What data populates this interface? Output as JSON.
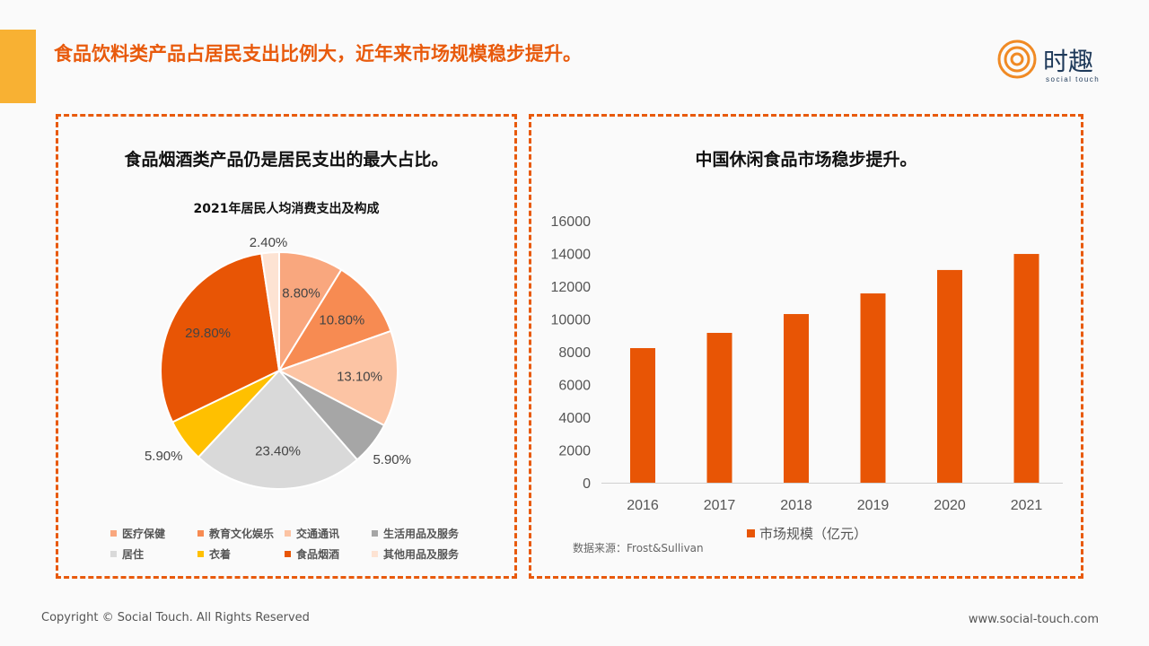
{
  "header": {
    "title": "食品饮料类产品占居民支出比例大，近年来市场规模稳步提升。",
    "logo_text": "时趣",
    "logo_sub": "social touch"
  },
  "left_panel": {
    "title": "食品烟酒类产品仍是居民支出的最大占比。"
  },
  "right_panel": {
    "title": "中国休闲食品市场稳步提升。",
    "source": "数据来源：Frost&Sullivan"
  },
  "footer": {
    "copyright": "Copyright © Social Touch. All Rights Reserved",
    "website": "www.social-touch.com"
  },
  "chart_data": [
    {
      "type": "pie",
      "title": "2021年居民人均消费支出及构成",
      "slices": [
        {
          "label": "医疗保健",
          "value": 8.8,
          "display": "8.80%",
          "color": "#F9A77E"
        },
        {
          "label": "教育文化娱乐",
          "value": 10.8,
          "display": "10.80%",
          "color": "#F78B52"
        },
        {
          "label": "交通通讯",
          "value": 13.1,
          "display": "13.10%",
          "color": "#FCC4A4"
        },
        {
          "label": "生活用品及服务",
          "value": 5.9,
          "display": "5.90%",
          "color": "#A6A6A6"
        },
        {
          "label": "居住",
          "value": 23.4,
          "display": "23.40%",
          "color": "#D9D9D9"
        },
        {
          "label": "衣着",
          "value": 5.9,
          "display": "5.90%",
          "color": "#FFC000"
        },
        {
          "label": "食品烟酒",
          "value": 29.8,
          "display": "29.80%",
          "color": "#E85505"
        },
        {
          "label": "其他用品及服务",
          "value": 2.4,
          "display": "2.40%",
          "color": "#FDE3D3"
        }
      ],
      "legend": "bottom"
    },
    {
      "type": "bar",
      "categories": [
        "2016",
        "2017",
        "2018",
        "2019",
        "2020",
        "2021"
      ],
      "values": [
        8220,
        9150,
        10300,
        11560,
        12990,
        13970
      ],
      "series_name": "市场规模（亿元）",
      "ylim": [
        0,
        16000
      ],
      "yticks": [
        "0",
        "2000",
        "4000",
        "6000",
        "8000",
        "10000",
        "12000",
        "14000",
        "16000"
      ],
      "color": "#E85505",
      "legend": "bottom"
    }
  ]
}
